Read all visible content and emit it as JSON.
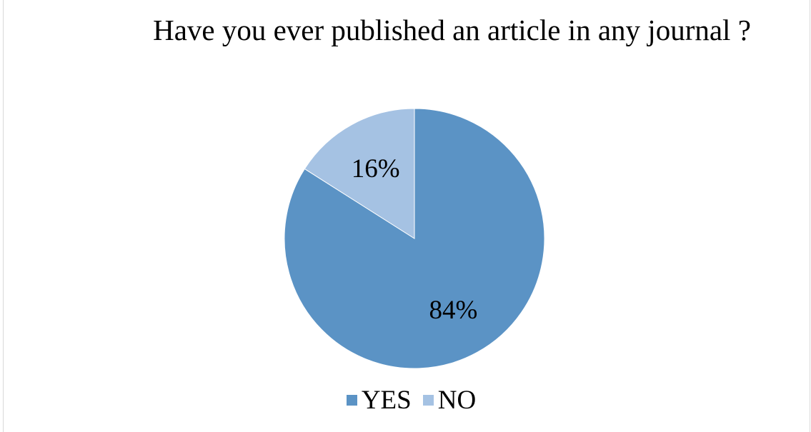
{
  "chart_data": {
    "type": "pie",
    "title": "Have you ever published an article in any journal ?",
    "slices": [
      {
        "name": "YES",
        "value": 84,
        "label": "84%",
        "color": "#5B93C5"
      },
      {
        "name": "NO",
        "value": 16,
        "label": "16%",
        "color": "#A5C2E3"
      }
    ],
    "start_angle_deg": 0,
    "direction": "clockwise",
    "legend_position": "bottom"
  }
}
